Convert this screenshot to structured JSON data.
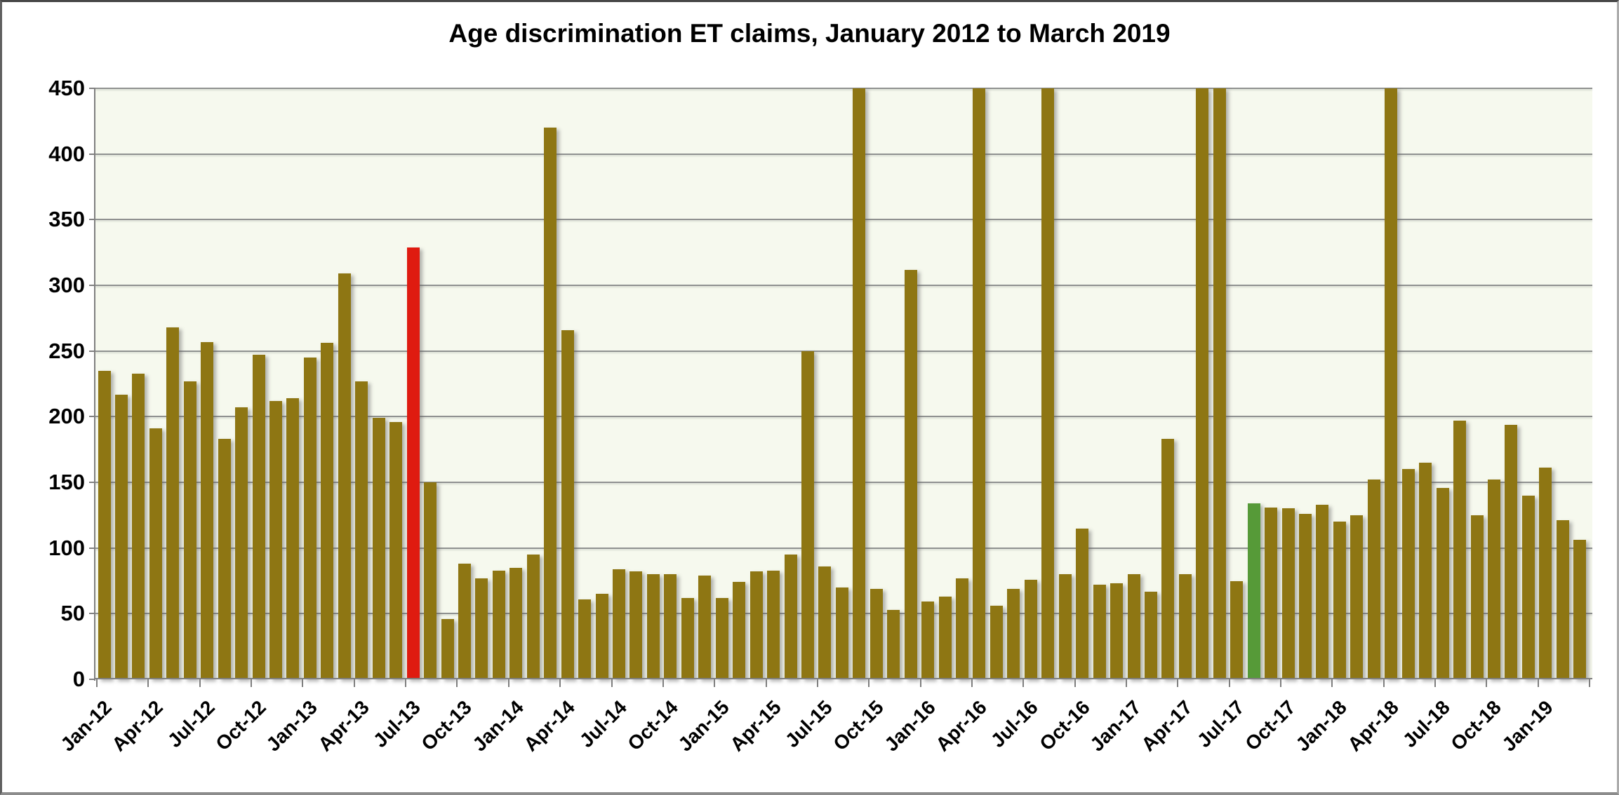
{
  "title": "Age discrimination ET claims, January 2012 to March 2019",
  "colors": {
    "bar_default": "#8e7613",
    "bar_red": "#df1b10",
    "bar_green": "#569a38",
    "plot_background": "#f6f9ee",
    "gridline": "#8f9190",
    "axis": "#7f7f7f",
    "text": "#000000"
  },
  "chart_data": {
    "type": "bar",
    "title": "Age discrimination ET claims, January 2012 to March 2019",
    "xlabel": "",
    "ylabel": "",
    "ylim": [
      0,
      450
    ],
    "ytick_step": 50,
    "grid": true,
    "legend": "none",
    "categories": [
      "Jan-12",
      "Feb-12",
      "Mar-12",
      "Apr-12",
      "May-12",
      "Jun-12",
      "Jul-12",
      "Aug-12",
      "Sep-12",
      "Oct-12",
      "Nov-12",
      "Dec-12",
      "Jan-13",
      "Feb-13",
      "Mar-13",
      "Apr-13",
      "May-13",
      "Jun-13",
      "Jul-13",
      "Aug-13",
      "Sep-13",
      "Oct-13",
      "Nov-13",
      "Dec-13",
      "Jan-14",
      "Feb-14",
      "Mar-14",
      "Apr-14",
      "May-14",
      "Jun-14",
      "Jul-14",
      "Aug-14",
      "Sep-14",
      "Oct-14",
      "Nov-14",
      "Dec-14",
      "Jan-15",
      "Feb-15",
      "Mar-15",
      "Apr-15",
      "May-15",
      "Jun-15",
      "Jul-15",
      "Aug-15",
      "Sep-15",
      "Oct-15",
      "Nov-15",
      "Dec-15",
      "Jan-16",
      "Feb-16",
      "Mar-16",
      "Apr-16",
      "May-16",
      "Jun-16",
      "Jul-16",
      "Aug-16",
      "Sep-16",
      "Oct-16",
      "Nov-16",
      "Dec-16",
      "Jan-17",
      "Feb-17",
      "Mar-17",
      "Apr-17",
      "May-17",
      "Jun-17",
      "Jul-17",
      "Aug-17",
      "Sep-17",
      "Oct-17",
      "Nov-17",
      "Dec-17",
      "Jan-18",
      "Feb-18",
      "Mar-18",
      "Apr-18",
      "May-18",
      "Jun-18",
      "Jul-18",
      "Aug-18",
      "Sep-18",
      "Oct-18",
      "Nov-18",
      "Dec-18",
      "Jan-19",
      "Feb-19",
      "Mar-19"
    ],
    "values": [
      235,
      217,
      233,
      191,
      268,
      227,
      257,
      183,
      207,
      247,
      212,
      214,
      245,
      256,
      309,
      227,
      199,
      196,
      329,
      150,
      46,
      88,
      77,
      83,
      85,
      95,
      420,
      266,
      61,
      65,
      84,
      82,
      80,
      80,
      62,
      79,
      62,
      74,
      82,
      83,
      95,
      250,
      86,
      70,
      450,
      69,
      53,
      312,
      59,
      63,
      77,
      450,
      56,
      69,
      76,
      450,
      80,
      115,
      72,
      73,
      80,
      67,
      183,
      80,
      450,
      450,
      75,
      134,
      131,
      130,
      126,
      133,
      120,
      125,
      152,
      450,
      160,
      165,
      146,
      197,
      125,
      152,
      194,
      140,
      161,
      121,
      106
    ],
    "clipped_indices": [
      44,
      51,
      55,
      64,
      65,
      75
    ],
    "clipped_note": "bars truncated at y-axis maximum of 450",
    "highlights": [
      {
        "month": "Jul-13",
        "index": 18,
        "color_key": "bar_red"
      },
      {
        "month": "Aug-17",
        "index": 67,
        "color_key": "bar_green"
      }
    ],
    "y_axis": {
      "tick_labels": [
        "0",
        "50",
        "100",
        "150",
        "200",
        "250",
        "300",
        "350",
        "400",
        "450"
      ]
    },
    "x_axis": {
      "tick_every": 3,
      "tick_labels": [
        "Jan-12",
        "Apr-12",
        "Jul-12",
        "Oct-12",
        "Jan-13",
        "Apr-13",
        "Jul-13",
        "Oct-13",
        "Jan-14",
        "Apr-14",
        "Jul-14",
        "Oct-14",
        "Jan-15",
        "Apr-15",
        "Jul-15",
        "Oct-15",
        "Jan-16",
        "Apr-16",
        "Jul-16",
        "Oct-16",
        "Jan-17",
        "Apr-17",
        "Jul-17",
        "Oct-17",
        "Jan-18",
        "Apr-18",
        "Jul-18",
        "Oct-18",
        "Jan-19"
      ]
    }
  }
}
